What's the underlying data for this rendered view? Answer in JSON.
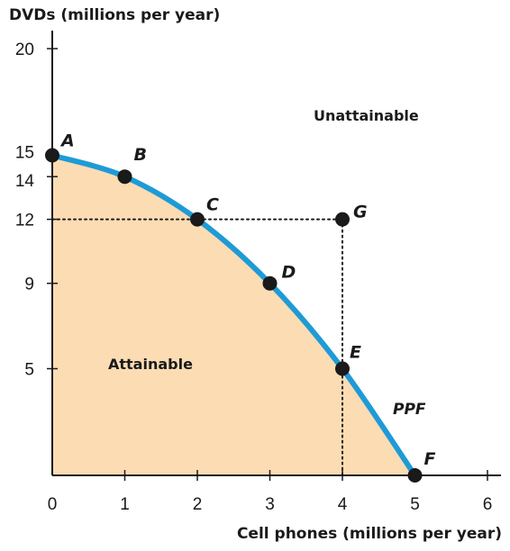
{
  "chart_data": {
    "type": "line",
    "xlabel": "Cell phones (millions per year)",
    "ylabel": "DVDs (millions per year)",
    "xlim": [
      0,
      6
    ],
    "ylim": [
      0,
      20
    ],
    "x_ticks": [
      0,
      1,
      2,
      3,
      4,
      5,
      6
    ],
    "x_tick_labels": [
      "0",
      "1",
      "2",
      "3",
      "4",
      "5",
      "6"
    ],
    "y_ticks": [
      5,
      9,
      12,
      14,
      15,
      20
    ],
    "y_tick_labels": [
      "5",
      "9",
      "12",
      "14",
      "15",
      "20"
    ],
    "grid": false,
    "series": [
      {
        "name": "PPF",
        "color": "#1e9bd7",
        "points": [
          {
            "label": "A",
            "x": 0,
            "y": 15
          },
          {
            "label": "B",
            "x": 1,
            "y": 14
          },
          {
            "label": "C",
            "x": 2,
            "y": 12
          },
          {
            "label": "D",
            "x": 3,
            "y": 9
          },
          {
            "label": "E",
            "x": 4,
            "y": 5
          },
          {
            "label": "F",
            "x": 5,
            "y": 0
          }
        ]
      }
    ],
    "extra_points": [
      {
        "label": "G",
        "x": 4,
        "y": 12
      }
    ],
    "reference_lines": [
      {
        "from": {
          "x": 0,
          "y": 12
        },
        "to": {
          "x": 4,
          "y": 12
        },
        "style": "dotted"
      },
      {
        "from": {
          "x": 4,
          "y": 12
        },
        "to": {
          "x": 4,
          "y": 0
        },
        "style": "dotted"
      }
    ],
    "regions": [
      {
        "label": "Attainable",
        "fill": "#fcdcb3"
      },
      {
        "label": "Unattainable"
      }
    ],
    "curve_label": "PPF",
    "fill_color": "#fcdcb3",
    "point_color": "#1a1a1a"
  }
}
